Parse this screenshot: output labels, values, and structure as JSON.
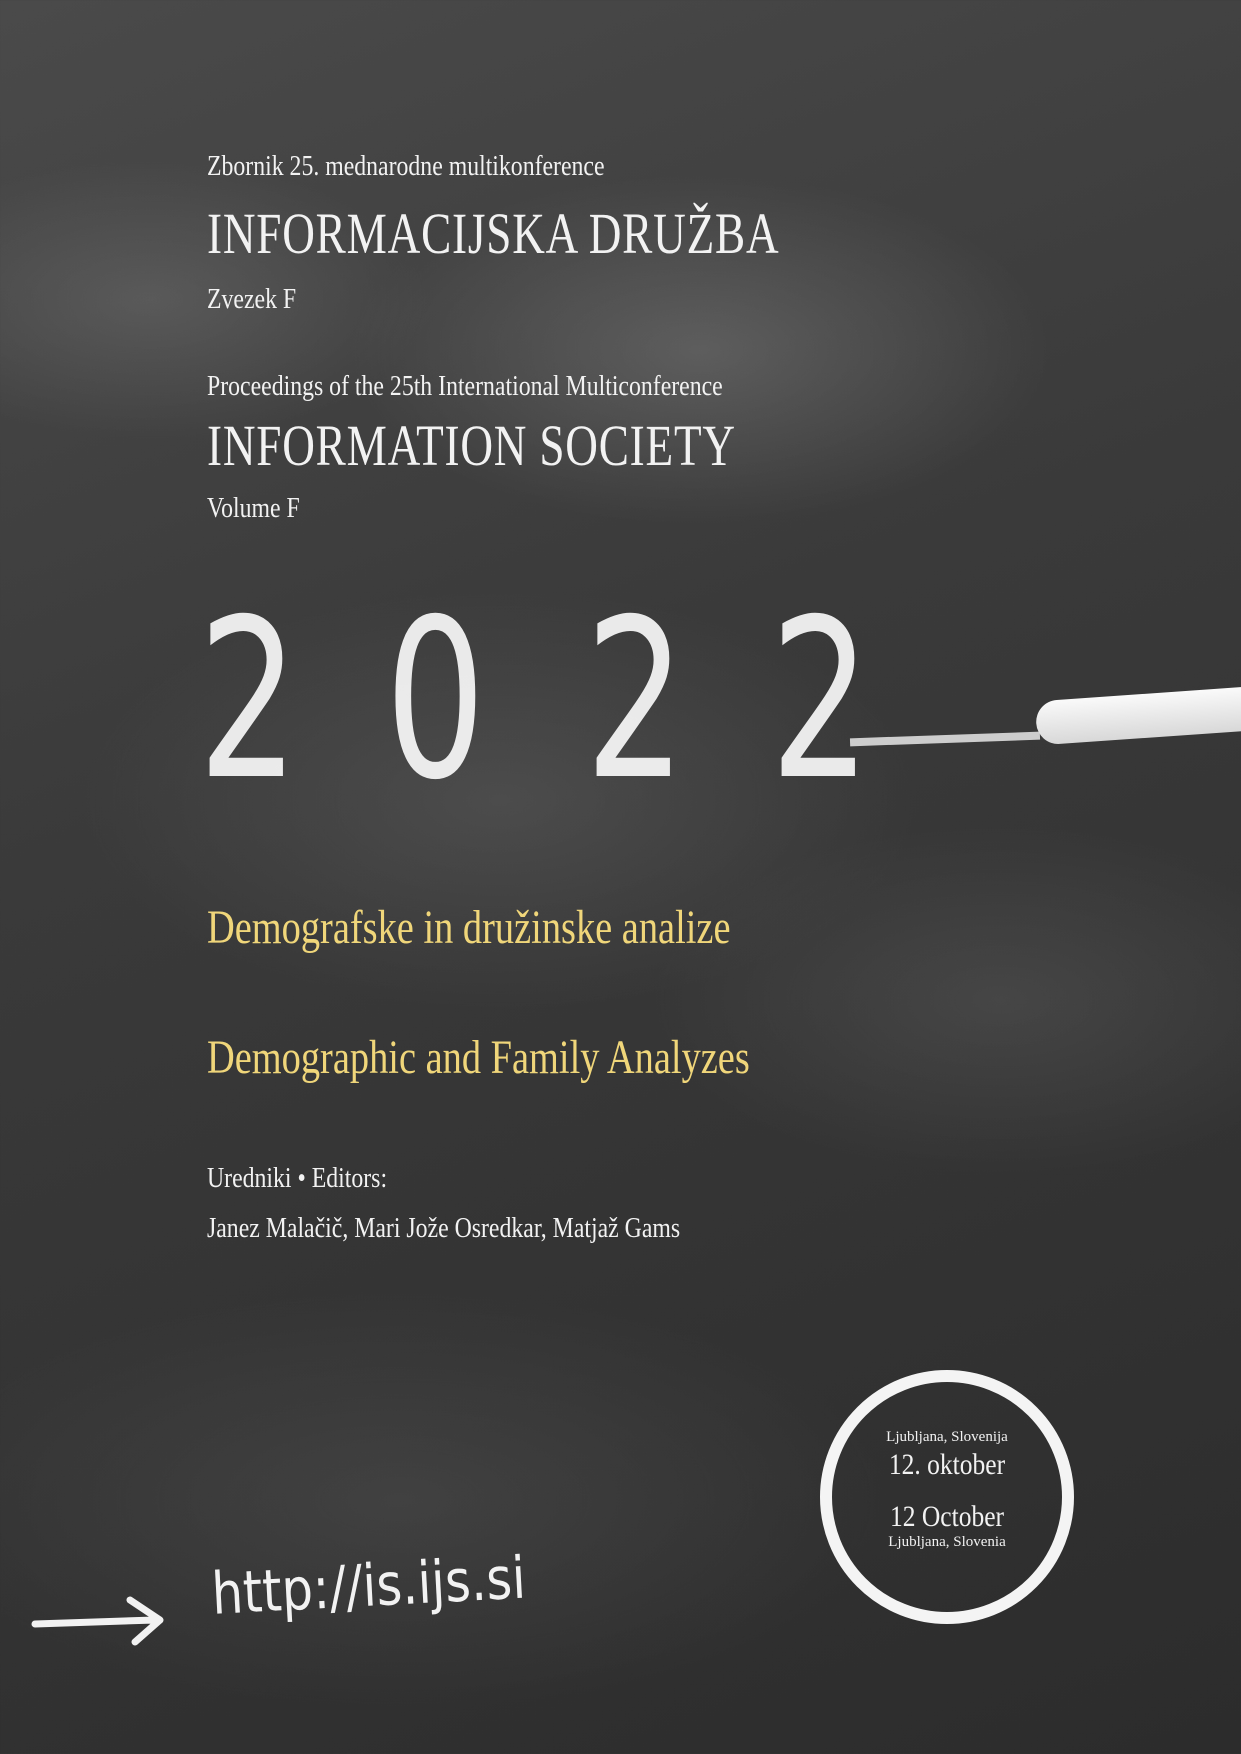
{
  "slovene": {
    "subtitle": "Zbornik 25. mednarodne multikonference",
    "title": "INFORMACIJSKA DRUŽBA",
    "volume": "Zvezek F"
  },
  "english": {
    "subtitle": "Proceedings of the 25th International Multiconference",
    "title": "INFORMATION SOCIETY",
    "volume": "Volume F"
  },
  "year_digits": [
    "2",
    "0",
    "2",
    "2"
  ],
  "topic": {
    "slovene": "Demografske in družinske analize",
    "english": "Demographic and Family Analyzes"
  },
  "editors": {
    "label": "Uredniki • Editors:",
    "names": "Janez Malačič, Mari Jože Osredkar, Matjaž Gams"
  },
  "date_stamp": {
    "place_sl": "Ljubljana, Slovenija",
    "date_sl": "12. oktober",
    "date_en": "12 October",
    "place_en": "Ljubljana, Slovenia"
  },
  "url": "http://is.ijs.si",
  "colors": {
    "background": "#3a3a3a",
    "chalk_white": "#f2f2f2",
    "topic_yellow": "#f0d67a"
  }
}
